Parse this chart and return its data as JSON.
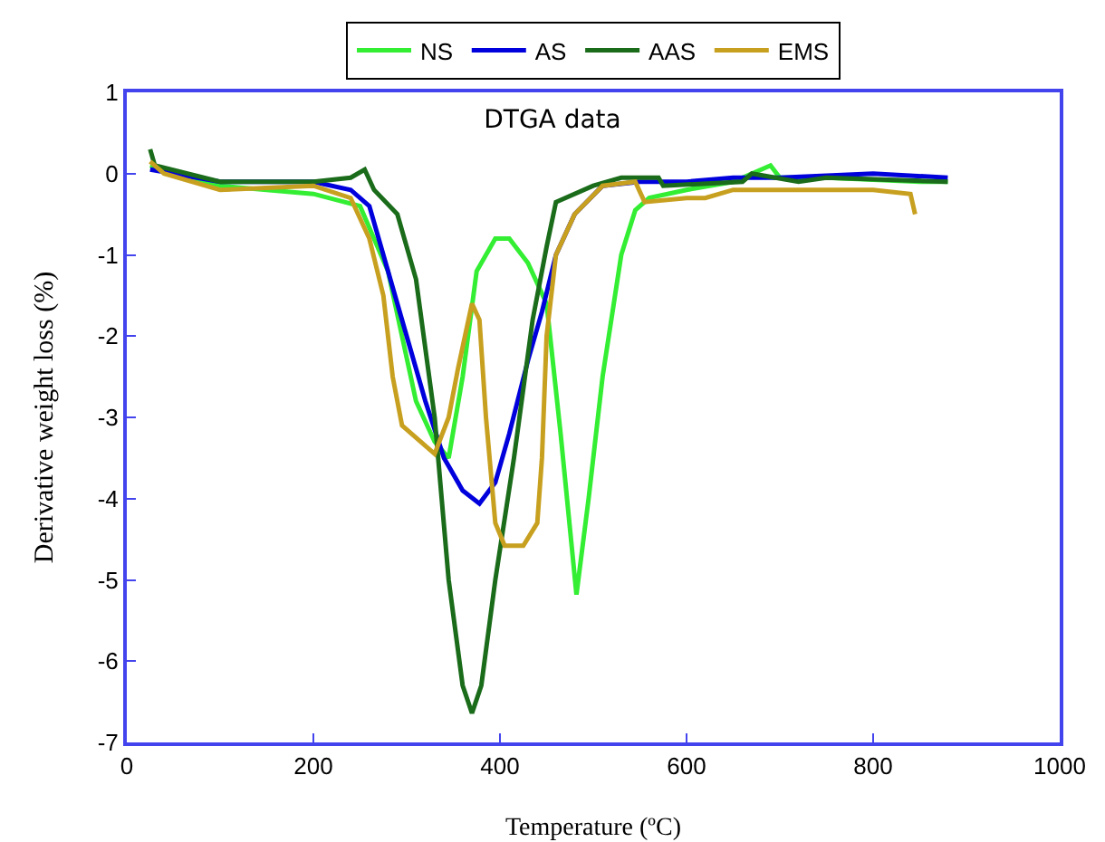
{
  "chart_data": {
    "type": "line",
    "title": "DTGA data",
    "xlabel": "Temperature (ºC)",
    "ylabel": "Derivative weight loss (%)",
    "xlim": [
      0,
      1000
    ],
    "xticks": [
      0,
      200,
      400,
      600,
      800,
      1000
    ],
    "ylim": [
      -7,
      1
    ],
    "yticks": [
      -7,
      -6,
      -5,
      -4,
      -3,
      -2,
      -1,
      0,
      1
    ],
    "grid": false,
    "legend": "top",
    "series": [
      {
        "name": "NS",
        "color": "#33ee33",
        "x": [
          25,
          100,
          200,
          250,
          280,
          310,
          330,
          345,
          360,
          375,
          395,
          410,
          430,
          450,
          465,
          482,
          495,
          510,
          530,
          545,
          560,
          600,
          650,
          690,
          700,
          750,
          850,
          880
        ],
        "values": [
          0.1,
          -0.15,
          -0.25,
          -0.4,
          -1.2,
          -2.8,
          -3.3,
          -3.5,
          -2.5,
          -1.2,
          -0.8,
          -0.8,
          -1.1,
          -1.6,
          -3.2,
          -5.18,
          -4,
          -2.5,
          -1,
          -0.45,
          -0.3,
          -0.2,
          -0.1,
          0.1,
          -0.05,
          -0.05,
          -0.1,
          -0.1
        ]
      },
      {
        "name": "AS",
        "color": "#0000dd",
        "x": [
          25,
          100,
          200,
          240,
          260,
          280,
          300,
          320,
          340,
          360,
          378,
          395,
          410,
          430,
          445,
          460,
          480,
          510,
          550,
          600,
          650,
          700,
          800,
          880
        ],
        "values": [
          0.05,
          -0.1,
          -0.1,
          -0.2,
          -0.4,
          -1.2,
          -2,
          -2.8,
          -3.5,
          -3.9,
          -4.06,
          -3.8,
          -3.2,
          -2.3,
          -1.7,
          -1,
          -0.5,
          -0.15,
          -0.1,
          -0.1,
          -0.05,
          -0.05,
          0,
          -0.05
        ]
      },
      {
        "name": "AAS",
        "color": "#1a6b1a",
        "x": [
          25,
          30,
          100,
          200,
          240,
          255,
          265,
          290,
          310,
          330,
          345,
          360,
          370,
          380,
          395,
          415,
          435,
          450,
          460,
          500,
          530,
          570,
          575,
          660,
          670,
          720,
          750,
          880
        ],
        "values": [
          0.3,
          0.1,
          -0.1,
          -0.1,
          -0.05,
          0.05,
          -0.2,
          -0.5,
          -1.3,
          -3,
          -5,
          -6.3,
          -6.64,
          -6.3,
          -5,
          -3.5,
          -1.8,
          -0.9,
          -0.35,
          -0.15,
          -0.05,
          -0.05,
          -0.15,
          -0.1,
          0,
          -0.1,
          -0.05,
          -0.1
        ]
      },
      {
        "name": "EMS",
        "color": "#c8a020",
        "x": [
          25,
          40,
          100,
          200,
          240,
          260,
          275,
          285,
          295,
          315,
          330,
          345,
          355,
          370,
          378,
          385,
          395,
          405,
          425,
          440,
          445,
          450,
          460,
          480,
          510,
          545,
          555,
          600,
          620,
          650,
          700,
          800,
          840,
          845
        ],
        "values": [
          0.15,
          0,
          -0.2,
          -0.15,
          -0.3,
          -0.8,
          -1.5,
          -2.5,
          -3.1,
          -3.3,
          -3.45,
          -3,
          -2.4,
          -1.6,
          -1.8,
          -3,
          -4.3,
          -4.58,
          -4.58,
          -4.3,
          -3.5,
          -2,
          -1,
          -0.5,
          -0.15,
          -0.1,
          -0.35,
          -0.3,
          -0.3,
          -0.2,
          -0.2,
          -0.2,
          -0.25,
          -0.5
        ]
      }
    ]
  }
}
